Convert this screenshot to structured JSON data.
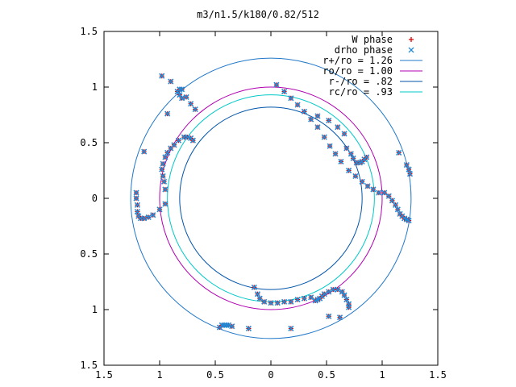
{
  "chart_data": {
    "type": "scatter",
    "title": "m3/n1.5/k180/0.82/512",
    "xlim": [
      -1.5,
      1.5
    ],
    "ylim": [
      -1.5,
      1.5
    ],
    "x_tick_values": [
      -1.5,
      -1,
      -0.5,
      0,
      0.5,
      1,
      1.5
    ],
    "x_tick_labels": [
      "1.5",
      "1",
      "0.5",
      "0",
      "0.5",
      "1",
      "1.5"
    ],
    "y_tick_values": [
      1.5,
      1,
      0.5,
      0,
      -0.5,
      -1,
      -1.5
    ],
    "y_tick_labels": [
      "1.5",
      "1",
      "0.5",
      "0",
      "0.5",
      "1",
      "1.5"
    ],
    "grid": false,
    "legend_position": "top-right",
    "circles": [
      {
        "label": "r+/ro = 1.26",
        "radius": 1.26,
        "color": "#1f77c9"
      },
      {
        "label": "ro/ro = 1.00",
        "radius": 1.0,
        "color": "#b000b0"
      },
      {
        "label": "r-/ro = .82",
        "radius": 0.82,
        "color": "#0055aa"
      },
      {
        "label": "rc/ro = .93",
        "radius": 0.93,
        "color": "#00c8c8"
      }
    ],
    "series": [
      {
        "name": "W phase",
        "marker": "+",
        "color": "#e00000",
        "points": [
          [
            -0.98,
            1.1
          ],
          [
            -0.9,
            1.05
          ],
          [
            -0.82,
            0.98
          ],
          [
            -0.76,
            0.91
          ],
          [
            -0.72,
            0.85
          ],
          [
            -0.68,
            0.8
          ],
          [
            0.05,
            1.02
          ],
          [
            0.12,
            0.96
          ],
          [
            0.18,
            0.9
          ],
          [
            0.24,
            0.84
          ],
          [
            0.3,
            0.78
          ],
          [
            0.36,
            0.71
          ],
          [
            0.42,
            0.64
          ],
          [
            0.48,
            0.55
          ],
          [
            0.53,
            0.47
          ],
          [
            0.58,
            0.4
          ],
          [
            0.63,
            0.33
          ],
          [
            0.7,
            0.25
          ],
          [
            0.76,
            0.2
          ],
          [
            0.82,
            0.15
          ],
          [
            0.87,
            0.11
          ],
          [
            0.92,
            0.08
          ],
          [
            0.97,
            0.05
          ],
          [
            1.02,
            0.05
          ],
          [
            1.06,
            0.02
          ],
          [
            1.09,
            -0.02
          ],
          [
            1.12,
            -0.06
          ],
          [
            1.14,
            -0.1
          ],
          [
            1.16,
            -0.14
          ],
          [
            1.18,
            -0.16
          ],
          [
            1.2,
            -0.18
          ],
          [
            1.22,
            -0.19
          ],
          [
            1.24,
            -0.2
          ],
          [
            1.15,
            0.41
          ],
          [
            1.22,
            0.3
          ],
          [
            1.24,
            0.26
          ],
          [
            1.25,
            0.22
          ],
          [
            0.42,
            0.74
          ],
          [
            0.52,
            0.7
          ],
          [
            0.6,
            0.64
          ],
          [
            0.66,
            0.58
          ],
          [
            0.68,
            0.45
          ],
          [
            0.72,
            0.4
          ],
          [
            0.74,
            0.36
          ],
          [
            0.77,
            0.32
          ],
          [
            0.8,
            0.32
          ],
          [
            0.82,
            0.33
          ],
          [
            0.84,
            0.35
          ],
          [
            0.86,
            0.37
          ],
          [
            -0.95,
            -0.05
          ],
          [
            -1.0,
            -0.1
          ],
          [
            -1.06,
            -0.15
          ],
          [
            -1.1,
            -0.17
          ],
          [
            -1.14,
            -0.18
          ],
          [
            -1.17,
            -0.18
          ],
          [
            -1.19,
            -0.16
          ],
          [
            -1.2,
            -0.12
          ],
          [
            -1.2,
            -0.06
          ],
          [
            -1.21,
            0.0
          ],
          [
            -1.21,
            0.05
          ],
          [
            -1.14,
            0.42
          ],
          [
            -0.93,
            0.76
          ],
          [
            -0.95,
            0.08
          ],
          [
            -0.96,
            0.15
          ],
          [
            -0.97,
            0.2
          ],
          [
            -0.98,
            0.26
          ],
          [
            -0.97,
            0.31
          ],
          [
            -0.95,
            0.37
          ],
          [
            -0.93,
            0.41
          ],
          [
            -0.9,
            0.45
          ],
          [
            -0.87,
            0.48
          ],
          [
            -0.83,
            0.52
          ],
          [
            -0.78,
            0.55
          ],
          [
            -0.75,
            0.55
          ],
          [
            -0.72,
            0.54
          ],
          [
            -0.7,
            0.52
          ],
          [
            -0.84,
            0.96
          ],
          [
            -0.82,
            0.93
          ],
          [
            -0.8,
            0.9
          ],
          [
            -0.8,
            0.98
          ],
          [
            0.4,
            -0.92
          ],
          [
            0.42,
            -0.91
          ],
          [
            0.44,
            -0.9
          ],
          [
            0.46,
            -0.88
          ],
          [
            0.48,
            -0.86
          ],
          [
            0.52,
            -0.84
          ],
          [
            0.56,
            -0.82
          ],
          [
            0.6,
            -0.82
          ],
          [
            0.64,
            -0.84
          ],
          [
            0.66,
            -0.87
          ],
          [
            0.68,
            -0.91
          ],
          [
            0.7,
            -0.95
          ],
          [
            0.7,
            -0.98
          ],
          [
            -0.15,
            -0.8
          ],
          [
            -0.12,
            -0.86
          ],
          [
            -0.1,
            -0.9
          ],
          [
            -0.06,
            -0.93
          ],
          [
            0.0,
            -0.94
          ],
          [
            0.06,
            -0.94
          ],
          [
            0.12,
            -0.93
          ],
          [
            0.18,
            -0.93
          ],
          [
            0.24,
            -0.91
          ],
          [
            0.3,
            -0.9
          ],
          [
            0.36,
            -0.89
          ],
          [
            0.18,
            -1.17
          ],
          [
            0.52,
            -1.06
          ],
          [
            0.62,
            -1.07
          ],
          [
            -0.46,
            -1.16
          ],
          [
            -0.44,
            -1.14
          ],
          [
            -0.42,
            -1.14
          ],
          [
            -0.4,
            -1.14
          ],
          [
            -0.38,
            -1.14
          ],
          [
            -0.35,
            -1.15
          ],
          [
            -0.2,
            -1.17
          ]
        ]
      },
      {
        "name": "drho phase",
        "marker": "x",
        "color": "#1f8ad8",
        "points": [
          [
            -0.98,
            1.1
          ],
          [
            -0.9,
            1.05
          ],
          [
            -0.82,
            0.98
          ],
          [
            -0.76,
            0.91
          ],
          [
            -0.72,
            0.85
          ],
          [
            -0.68,
            0.8
          ],
          [
            0.05,
            1.02
          ],
          [
            0.12,
            0.96
          ],
          [
            0.18,
            0.9
          ],
          [
            0.24,
            0.84
          ],
          [
            0.3,
            0.78
          ],
          [
            0.36,
            0.71
          ],
          [
            0.42,
            0.64
          ],
          [
            0.48,
            0.55
          ],
          [
            0.53,
            0.47
          ],
          [
            0.58,
            0.4
          ],
          [
            0.63,
            0.33
          ],
          [
            0.7,
            0.25
          ],
          [
            0.76,
            0.2
          ],
          [
            0.82,
            0.15
          ],
          [
            0.87,
            0.11
          ],
          [
            0.92,
            0.08
          ],
          [
            0.97,
            0.05
          ],
          [
            1.02,
            0.05
          ],
          [
            1.06,
            0.02
          ],
          [
            1.09,
            -0.02
          ],
          [
            1.12,
            -0.06
          ],
          [
            1.14,
            -0.1
          ],
          [
            1.16,
            -0.14
          ],
          [
            1.18,
            -0.16
          ],
          [
            1.2,
            -0.18
          ],
          [
            1.22,
            -0.19
          ],
          [
            1.24,
            -0.2
          ],
          [
            1.15,
            0.41
          ],
          [
            1.22,
            0.3
          ],
          [
            1.24,
            0.26
          ],
          [
            1.25,
            0.22
          ],
          [
            0.42,
            0.74
          ],
          [
            0.52,
            0.7
          ],
          [
            0.6,
            0.64
          ],
          [
            0.66,
            0.58
          ],
          [
            0.68,
            0.45
          ],
          [
            0.72,
            0.4
          ],
          [
            0.74,
            0.36
          ],
          [
            0.77,
            0.32
          ],
          [
            0.8,
            0.32
          ],
          [
            0.82,
            0.33
          ],
          [
            0.84,
            0.35
          ],
          [
            0.86,
            0.37
          ],
          [
            -0.95,
            -0.05
          ],
          [
            -1.0,
            -0.1
          ],
          [
            -1.06,
            -0.15
          ],
          [
            -1.1,
            -0.17
          ],
          [
            -1.14,
            -0.18
          ],
          [
            -1.17,
            -0.18
          ],
          [
            -1.19,
            -0.16
          ],
          [
            -1.2,
            -0.12
          ],
          [
            -1.2,
            -0.06
          ],
          [
            -1.21,
            0.0
          ],
          [
            -1.21,
            0.05
          ],
          [
            -1.14,
            0.42
          ],
          [
            -0.93,
            0.76
          ],
          [
            -0.95,
            0.08
          ],
          [
            -0.96,
            0.15
          ],
          [
            -0.97,
            0.2
          ],
          [
            -0.98,
            0.26
          ],
          [
            -0.97,
            0.31
          ],
          [
            -0.95,
            0.37
          ],
          [
            -0.93,
            0.41
          ],
          [
            -0.9,
            0.45
          ],
          [
            -0.87,
            0.48
          ],
          [
            -0.83,
            0.52
          ],
          [
            -0.78,
            0.55
          ],
          [
            -0.75,
            0.55
          ],
          [
            -0.72,
            0.54
          ],
          [
            -0.7,
            0.52
          ],
          [
            -0.84,
            0.96
          ],
          [
            -0.82,
            0.93
          ],
          [
            -0.8,
            0.9
          ],
          [
            -0.8,
            0.98
          ],
          [
            0.4,
            -0.92
          ],
          [
            0.42,
            -0.91
          ],
          [
            0.44,
            -0.9
          ],
          [
            0.46,
            -0.88
          ],
          [
            0.48,
            -0.86
          ],
          [
            0.52,
            -0.84
          ],
          [
            0.56,
            -0.82
          ],
          [
            0.6,
            -0.82
          ],
          [
            0.64,
            -0.84
          ],
          [
            0.66,
            -0.87
          ],
          [
            0.68,
            -0.91
          ],
          [
            0.7,
            -0.95
          ],
          [
            0.7,
            -0.98
          ],
          [
            -0.15,
            -0.8
          ],
          [
            -0.12,
            -0.86
          ],
          [
            -0.1,
            -0.9
          ],
          [
            -0.06,
            -0.93
          ],
          [
            0.0,
            -0.94
          ],
          [
            0.06,
            -0.94
          ],
          [
            0.12,
            -0.93
          ],
          [
            0.18,
            -0.93
          ],
          [
            0.24,
            -0.91
          ],
          [
            0.3,
            -0.9
          ],
          [
            0.36,
            -0.89
          ],
          [
            0.18,
            -1.17
          ],
          [
            0.52,
            -1.06
          ],
          [
            0.62,
            -1.07
          ],
          [
            -0.46,
            -1.16
          ],
          [
            -0.44,
            -1.14
          ],
          [
            -0.42,
            -1.14
          ],
          [
            -0.4,
            -1.14
          ],
          [
            -0.38,
            -1.14
          ],
          [
            -0.35,
            -1.15
          ],
          [
            -0.2,
            -1.17
          ]
        ]
      }
    ]
  }
}
